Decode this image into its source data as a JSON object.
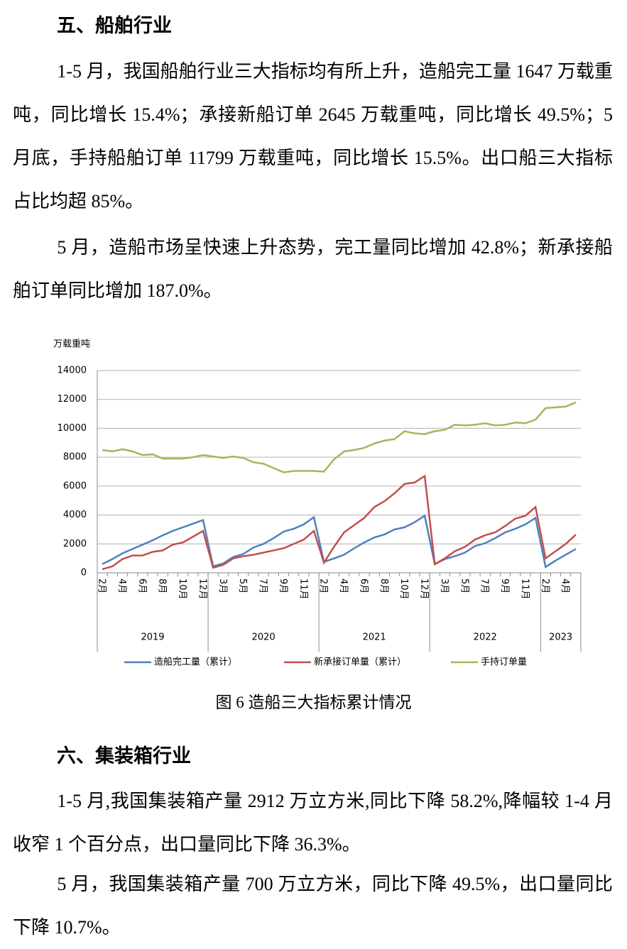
{
  "sections": [
    {
      "heading": "五、船舶行业",
      "paragraphs": [
        "1-5 月，我国船舶行业三大指标均有所上升，造船完工量 1647 万载重吨，同比增长 15.4%；承接新船订单 2645 万载重吨，同比增长 49.5%；5 月底，手持船舶订单 11799 万载重吨，同比增长 15.5%。出口船三大指标占比均超 85%。",
        "5 月，造船市场呈快速上升态势，完工量同比增加 42.8%；新承接船舶订单同比增加 187.0%。"
      ]
    },
    {
      "heading": "六、集装箱行业",
      "paragraphs": [
        "1-5 月,我国集装箱产量 2912 万立方米,同比下降 58.2%,降幅较 1-4 月收窄 1 个百分点，出口量同比下降 36.3%。",
        "5 月，我国集装箱产量 700 万立方米，同比下降 49.5%，出口量同比下降 10.7%。"
      ]
    }
  ],
  "caption": "图 6 造船三大指标累计情况",
  "chart_data": {
    "type": "line",
    "y_label": "万载重吨",
    "groups": [
      {
        "name": "2019",
        "categories": [
          "2月",
          null,
          "4月",
          null,
          "6月",
          null,
          "8月",
          null,
          "10月",
          null,
          "12月"
        ]
      },
      {
        "name": "2020",
        "categories": [
          null,
          "3月",
          null,
          "5月",
          null,
          "7月",
          null,
          "9月",
          null,
          "11月",
          null
        ]
      },
      {
        "name": "2021",
        "categories": [
          "2月",
          null,
          "4月",
          null,
          "6月",
          null,
          "8月",
          null,
          "10月",
          null,
          "12月"
        ]
      },
      {
        "name": "2022",
        "categories": [
          null,
          "3月",
          null,
          "5月",
          null,
          "7月",
          null,
          "9月",
          null,
          "11月",
          null
        ]
      },
      {
        "name": "2023",
        "categories": [
          "2月",
          null,
          "4月",
          null
        ]
      }
    ],
    "series": [
      {
        "name": "造船完工量（累计）",
        "color": "#4f81bd",
        "values": [
          600,
          950,
          1350,
          1650,
          1950,
          2250,
          2600,
          2900,
          3150,
          3400,
          3650,
          450,
          650,
          1100,
          1300,
          1750,
          2000,
          2400,
          2850,
          3050,
          3350,
          3850,
          750,
          1000,
          1250,
          1700,
          2100,
          2450,
          2650,
          3000,
          3150,
          3500,
          3950,
          600,
          950,
          1150,
          1400,
          1850,
          2050,
          2400,
          2800,
          3050,
          3350,
          3800,
          400,
          850,
          1250,
          1647
        ]
      },
      {
        "name": "新承接订单量（累计）",
        "color": "#c0504d",
        "values": [
          250,
          450,
          950,
          1200,
          1200,
          1450,
          1550,
          1950,
          2100,
          2500,
          2900,
          350,
          550,
          1000,
          1150,
          1250,
          1400,
          1550,
          1700,
          2000,
          2300,
          2900,
          700,
          1800,
          2800,
          3300,
          3800,
          4550,
          4950,
          5500,
          6150,
          6250,
          6700,
          600,
          1000,
          1500,
          1800,
          2300,
          2600,
          2800,
          3250,
          3750,
          3950,
          4550,
          1000,
          1500,
          2000,
          2645
        ]
      },
      {
        "name": "手持订单量",
        "color": "#9bbb59",
        "values": [
          8500,
          8400,
          8550,
          8400,
          8150,
          8200,
          7900,
          7900,
          7900,
          8000,
          8150,
          8050,
          7950,
          8050,
          7950,
          7650,
          7550,
          7250,
          6950,
          7050,
          7050,
          7050,
          7000,
          7850,
          8400,
          8500,
          8650,
          8950,
          9150,
          9250,
          9800,
          9650,
          9600,
          9800,
          9900,
          10250,
          10200,
          10250,
          10350,
          10200,
          10250,
          10400,
          10350,
          10600,
          11400,
          11450,
          11500,
          11799
        ]
      }
    ],
    "ylim": [
      0,
      14000
    ],
    "yticks": [
      0,
      2000,
      4000,
      6000,
      8000,
      10000,
      12000,
      14000
    ],
    "grid": true,
    "legend": "bottom"
  }
}
